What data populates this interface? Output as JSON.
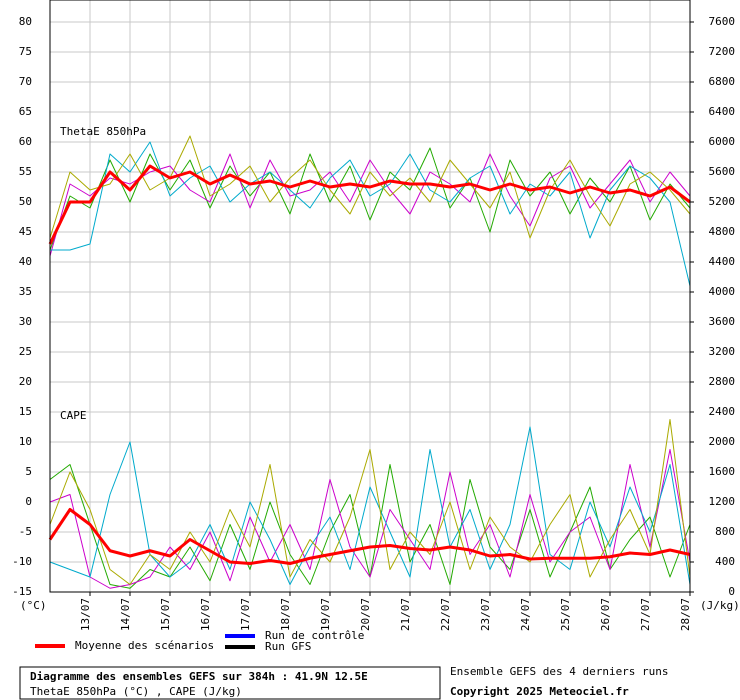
{
  "chart_data": {
    "type": "line",
    "title": "Diagramme des ensembles GEFS sur 384h : 41.9N 12.5E",
    "subtitle": "ThetaE 850hPa (°C) , CAPE (J/kg)",
    "notes": [
      "Ensemble GEFS des 4 derniers runs",
      "Copyright 2025 Meteociel.fr"
    ],
    "annotations": [
      "ThetaE 850hPa",
      "CAPE"
    ],
    "y_label": "(°C)",
    "y2_label": "(J/kg)",
    "grid": true,
    "x": [
      0,
      12,
      24,
      36,
      48,
      60,
      72,
      84,
      96,
      108,
      120,
      132,
      144,
      156,
      168,
      180,
      192,
      204,
      216,
      228,
      240,
      252,
      264,
      276,
      288,
      300,
      312,
      324,
      336,
      348,
      360,
      372,
      384
    ],
    "xlim": [
      0,
      384
    ],
    "xticks": [
      {
        "value": 24,
        "label": "13/07"
      },
      {
        "value": 48,
        "label": "14/07"
      },
      {
        "value": 72,
        "label": "15/07"
      },
      {
        "value": 96,
        "label": "16/07"
      },
      {
        "value": 120,
        "label": "17/07"
      },
      {
        "value": 144,
        "label": "18/07"
      },
      {
        "value": 168,
        "label": "19/07"
      },
      {
        "value": 192,
        "label": "20/07"
      },
      {
        "value": 216,
        "label": "21/07"
      },
      {
        "value": 240,
        "label": "22/07"
      },
      {
        "value": 264,
        "label": "23/07"
      },
      {
        "value": 288,
        "label": "24/07"
      },
      {
        "value": 312,
        "label": "25/07"
      },
      {
        "value": 336,
        "label": "26/07"
      },
      {
        "value": 360,
        "label": "27/07"
      },
      {
        "value": 384,
        "label": "28/07"
      }
    ],
    "ylim": [
      -15,
      80
    ],
    "yticks": [
      -15,
      -10,
      -5,
      0,
      5,
      10,
      15,
      20,
      25,
      30,
      35,
      40,
      45,
      50,
      55,
      60,
      65,
      70,
      75,
      80
    ],
    "y2lim": [
      0,
      7600
    ],
    "y2ticks": [
      0,
      400,
      800,
      1200,
      1600,
      2000,
      2400,
      2800,
      3200,
      3600,
      4000,
      4400,
      4800,
      5200,
      5600,
      6000,
      6400,
      6800,
      7200,
      7600
    ],
    "legend": [
      {
        "name": "Moyenne des scénarios",
        "color": "#ff0000"
      },
      {
        "name": "Run de contrôle",
        "color": "#0000ff"
      },
      {
        "name": "Run GFS",
        "color": "#000000"
      }
    ],
    "series": [
      {
        "color": "#22aa00",
        "axis": "y",
        "values": [
          42,
          51,
          49,
          57,
          50,
          58,
          52,
          57,
          49,
          56,
          51,
          55,
          48,
          58,
          50,
          56,
          47,
          55,
          52,
          59,
          49,
          54,
          45,
          57,
          51,
          55,
          48,
          54,
          50,
          56,
          47,
          53,
          49
        ]
      },
      {
        "color": "#cc00cc",
        "axis": "y",
        "values": [
          41,
          53,
          51,
          54,
          53,
          55,
          56,
          52,
          50,
          58,
          49,
          57,
          51,
          52,
          55,
          50,
          57,
          52,
          48,
          55,
          53,
          50,
          58,
          51,
          46,
          54,
          56,
          49,
          53,
          57,
          50,
          55,
          51
        ]
      },
      {
        "color": "#00aacc",
        "axis": "y",
        "values": [
          42,
          42,
          43,
          58,
          55,
          60,
          51,
          54,
          56,
          50,
          53,
          55,
          52,
          49,
          54,
          57,
          51,
          53,
          58,
          52,
          50,
          54,
          56,
          48,
          53,
          51,
          55,
          44,
          52,
          56,
          54,
          50,
          36
        ]
      },
      {
        "color": "#aaaa00",
        "axis": "y",
        "values": [
          44,
          55,
          52,
          53,
          58,
          52,
          54,
          61,
          51,
          53,
          56,
          50,
          54,
          57,
          52,
          48,
          55,
          51,
          54,
          50,
          57,
          53,
          49,
          55,
          44,
          52,
          57,
          51,
          46,
          53,
          55,
          52,
          48
        ]
      },
      {
        "color": "#22aa00",
        "axis": "y2",
        "values": [
          1500,
          1700,
          900,
          100,
          50,
          300,
          200,
          600,
          150,
          900,
          300,
          1200,
          500,
          100,
          800,
          1300,
          200,
          1700,
          400,
          900,
          100,
          1500,
          600,
          300,
          1100,
          200,
          800,
          1400,
          300,
          700,
          1000,
          200,
          900
        ]
      },
      {
        "color": "#cc00cc",
        "axis": "y2",
        "values": [
          1200,
          1300,
          200,
          50,
          100,
          200,
          600,
          300,
          800,
          150,
          1000,
          400,
          900,
          300,
          1500,
          600,
          200,
          1100,
          700,
          300,
          1600,
          500,
          900,
          200,
          1300,
          400,
          800,
          1000,
          300,
          1700,
          600,
          1900,
          400
        ]
      },
      {
        "color": "#00aacc",
        "axis": "y2",
        "values": [
          400,
          300,
          200,
          1300,
          2000,
          500,
          200,
          400,
          900,
          300,
          1200,
          700,
          100,
          600,
          1000,
          300,
          1400,
          800,
          200,
          1900,
          600,
          1100,
          300,
          900,
          2200,
          500,
          300,
          1200,
          600,
          1400,
          800,
          1700,
          100
        ]
      },
      {
        "color": "#aaaa00",
        "axis": "y2",
        "values": [
          900,
          1600,
          1100,
          300,
          100,
          500,
          300,
          800,
          400,
          1100,
          600,
          1700,
          200,
          700,
          400,
          1000,
          1900,
          300,
          800,
          500,
          1200,
          300,
          1000,
          600,
          400,
          900,
          1300,
          200,
          700,
          1100,
          500,
          2300,
          200
        ]
      },
      {
        "name": "Moyenne des scénarios",
        "color": "#ff0000",
        "axis": "y",
        "values": [
          43,
          50,
          50,
          55,
          52,
          56,
          54,
          55,
          53,
          54.5,
          53,
          53.5,
          52.5,
          53.5,
          52.5,
          53,
          52.5,
          53.5,
          53,
          53,
          52.5,
          53,
          52,
          53,
          52,
          52.5,
          51.5,
          52.5,
          51.5,
          52,
          51,
          52.5,
          50
        ]
      },
      {
        "name": "Moyenne des scénarios",
        "color": "#ff0000",
        "axis": "y2",
        "values": [
          700,
          1100,
          900,
          550,
          480,
          550,
          480,
          700,
          550,
          400,
          380,
          420,
          380,
          450,
          500,
          550,
          600,
          620,
          580,
          560,
          600,
          560,
          480,
          500,
          440,
          450,
          450,
          450,
          470,
          520,
          500,
          560,
          500
        ]
      }
    ]
  }
}
